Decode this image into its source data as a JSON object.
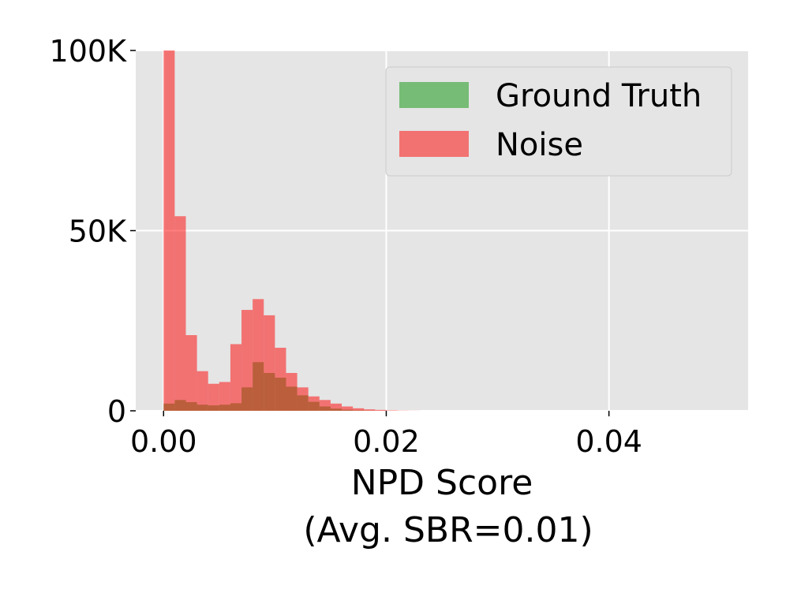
{
  "chart_data": {
    "type": "bar",
    "subtype": "overlaid-histogram",
    "xlabel_lines": [
      "NPD Score",
      "(Avg. SBR=0.01)"
    ],
    "ylabel": "",
    "xlim": [
      -0.0025,
      0.0525
    ],
    "ylim": [
      0,
      100000
    ],
    "y_clipped_at_top": true,
    "bin_width": 0.001,
    "x_ticks": [
      {
        "value": 0,
        "label": "0.00"
      },
      {
        "value": 0.02,
        "label": "0.02"
      },
      {
        "value": 0.04,
        "label": "0.04"
      }
    ],
    "y_ticks": [
      {
        "value": 0,
        "label": "0"
      },
      {
        "value": 50000,
        "label": "50K"
      },
      {
        "value": 100000,
        "label": "100K"
      }
    ],
    "grid": true,
    "background": "#e5e5e5",
    "legend_position": "top-right",
    "series": [
      {
        "name": "Ground Truth",
        "color": "#2ca02c",
        "opacity": 0.6,
        "bins_start": [
          0.0,
          0.001,
          0.002,
          0.003,
          0.004,
          0.005,
          0.006,
          0.007,
          0.008,
          0.009,
          0.01,
          0.011,
          0.012,
          0.013,
          0.014,
          0.015,
          0.016,
          0.017,
          0.018,
          0.019
        ],
        "values": [
          2000,
          3000,
          2400,
          1700,
          1500,
          1700,
          2100,
          6500,
          13500,
          10500,
          9200,
          6700,
          4300,
          2500,
          1200,
          600,
          300,
          150,
          80,
          40
        ]
      },
      {
        "name": "Noise",
        "color": "#ff0000",
        "opacity": 0.5,
        "bins_start": [
          0.0,
          0.001,
          0.002,
          0.003,
          0.004,
          0.005,
          0.006,
          0.007,
          0.008,
          0.009,
          0.01,
          0.011,
          0.012,
          0.013,
          0.014,
          0.015,
          0.016,
          0.017,
          0.018,
          0.019,
          0.02,
          0.021,
          0.022
        ],
        "values": [
          100000,
          54000,
          21000,
          11000,
          7500,
          8000,
          18500,
          28000,
          31000,
          26500,
          17500,
          10500,
          6500,
          4000,
          3000,
          2000,
          1200,
          700,
          400,
          250,
          120,
          60,
          30
        ]
      }
    ]
  }
}
